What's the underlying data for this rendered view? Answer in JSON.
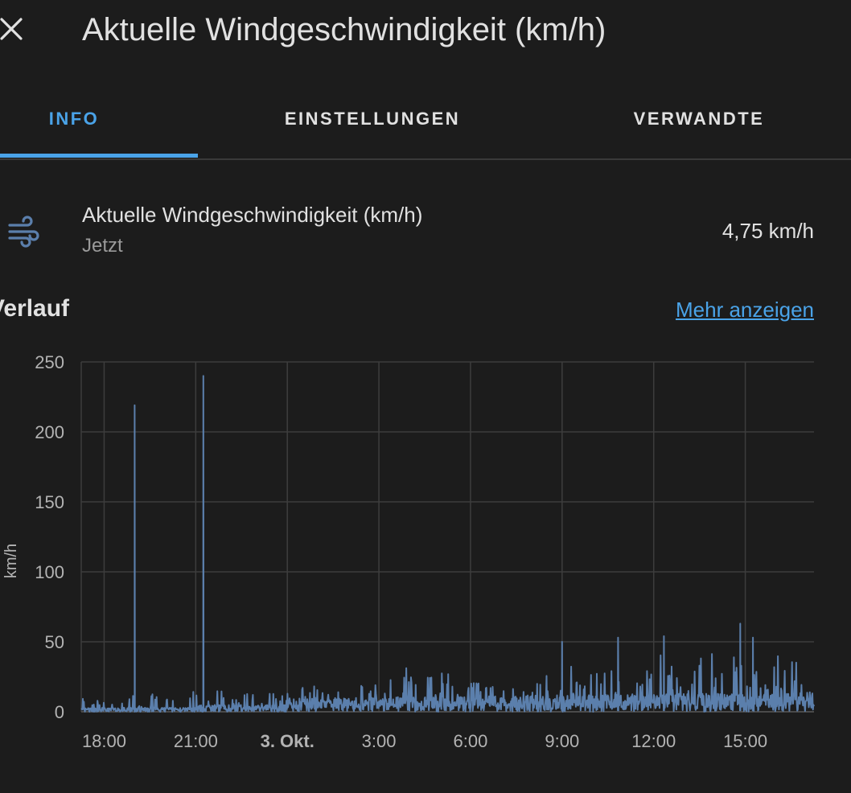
{
  "dialog": {
    "title": "Aktuelle Windgeschwindigkeit (km/h)",
    "close_icon": "close-icon"
  },
  "tabs": [
    {
      "label": "INFO",
      "active": true
    },
    {
      "label": "EINSTELLUNGEN",
      "active": false
    },
    {
      "label": "VERWANDTE",
      "active": false
    }
  ],
  "accent_color": "#4aa3e8",
  "entity": {
    "icon": "weather-windy-icon",
    "name": "Aktuelle Windgeschwindigkeit (km/h)",
    "time": "Jetzt",
    "value": "4,75 km/h"
  },
  "history": {
    "title": "Verlauf",
    "more_link": "Mehr anzeigen"
  },
  "chart_data": {
    "type": "line",
    "title": "",
    "ylabel": "km/h",
    "xlabel": "",
    "ylim": [
      0,
      250
    ],
    "y_ticks": [
      "250",
      "200",
      "150",
      "100",
      "50",
      "0"
    ],
    "x_ticks": [
      "18:00",
      "21:00",
      "3. Okt.",
      "3:00",
      "6:00",
      "9:00",
      "12:00",
      "15:00"
    ],
    "x_tick_bold": "3. Okt.",
    "x_range": [
      "17:15",
      "17:15 (+1 day)"
    ],
    "grid": true,
    "line_color": "#5b7fac",
    "series": [
      {
        "name": "",
        "peaks": [
          {
            "time": "19:00",
            "value": 219
          },
          {
            "time": "21:15",
            "value": 240
          },
          {
            "time": "14:50",
            "value": 63
          },
          {
            "time": "12:20",
            "value": 54
          },
          {
            "time": "10:50",
            "value": 53
          },
          {
            "time": "9:00",
            "value": 50
          },
          {
            "time": "15:15",
            "value": 53
          }
        ],
        "typical_range": [
          0,
          30
        ]
      }
    ]
  }
}
